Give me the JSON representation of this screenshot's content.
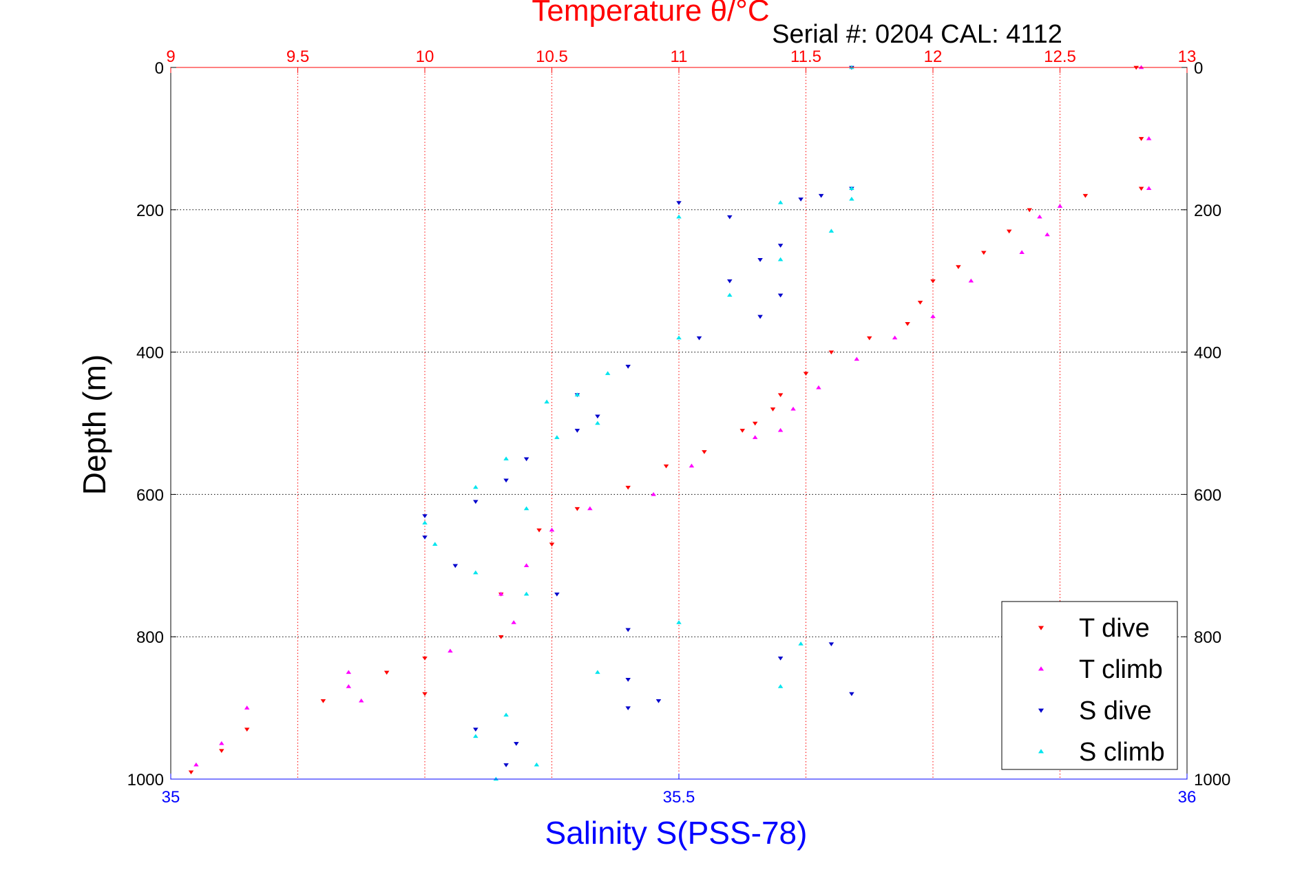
{
  "chart_data": {
    "type": "scatter",
    "title": "Temperature θ/°C",
    "subtitle": "Serial #: 0204  CAL: 4112",
    "xlabel": "Salinity S(PSS-78)",
    "ylabel": "Depth (m)",
    "colors": {
      "temperature_axis": "#ff0000",
      "salinity_axis": "#0000ff",
      "t_dive": "#ff0000",
      "t_climb": "#ff00ff",
      "s_dive": "#0000cc",
      "s_climb": "#00e5ee"
    },
    "top_axis": {
      "label": "Temperature θ/°C",
      "range": [
        9,
        13
      ],
      "ticks": [
        "9",
        "9.5",
        "10",
        "10.5",
        "11",
        "11.5",
        "12",
        "12.5",
        "13"
      ]
    },
    "bottom_axis": {
      "label": "Salinity S(PSS-78)",
      "range": [
        35,
        36
      ],
      "ticks": [
        "35",
        "35.5",
        "36"
      ]
    },
    "y_axis": {
      "label": "Depth (m)",
      "range": [
        0,
        1000
      ],
      "reversed": true,
      "ticks": [
        "0",
        "200",
        "400",
        "600",
        "800",
        "1000"
      ]
    },
    "grid": true,
    "legend": {
      "position": "bottom-right",
      "entries": [
        "T dive",
        "T climb",
        "S dive",
        "S climb"
      ]
    },
    "series": [
      {
        "name": "T dive",
        "axis": "temperature",
        "marker": "triangle-down",
        "points": [
          [
            12.8,
            0
          ],
          [
            12.82,
            100
          ],
          [
            12.82,
            170
          ],
          [
            12.6,
            180
          ],
          [
            12.38,
            200
          ],
          [
            12.3,
            230
          ],
          [
            12.2,
            260
          ],
          [
            12.1,
            280
          ],
          [
            12.0,
            300
          ],
          [
            11.95,
            330
          ],
          [
            11.9,
            360
          ],
          [
            11.75,
            380
          ],
          [
            11.6,
            400
          ],
          [
            11.5,
            430
          ],
          [
            11.4,
            460
          ],
          [
            11.37,
            480
          ],
          [
            11.3,
            500
          ],
          [
            11.25,
            510
          ],
          [
            11.1,
            540
          ],
          [
            10.95,
            560
          ],
          [
            10.8,
            590
          ],
          [
            10.6,
            620
          ],
          [
            10.45,
            650
          ],
          [
            10.5,
            670
          ],
          [
            10.3,
            740
          ],
          [
            10.3,
            800
          ],
          [
            10.0,
            830
          ],
          [
            9.85,
            850
          ],
          [
            10.0,
            880
          ],
          [
            9.6,
            890
          ],
          [
            9.3,
            930
          ],
          [
            9.2,
            960
          ],
          [
            9.08,
            990
          ]
        ]
      },
      {
        "name": "T climb",
        "axis": "temperature",
        "marker": "triangle-up",
        "points": [
          [
            12.82,
            0
          ],
          [
            12.85,
            100
          ],
          [
            12.85,
            170
          ],
          [
            12.5,
            195
          ],
          [
            12.42,
            210
          ],
          [
            12.45,
            235
          ],
          [
            12.35,
            260
          ],
          [
            12.15,
            300
          ],
          [
            12.0,
            350
          ],
          [
            11.85,
            380
          ],
          [
            11.7,
            410
          ],
          [
            11.55,
            450
          ],
          [
            11.45,
            480
          ],
          [
            11.4,
            510
          ],
          [
            11.3,
            520
          ],
          [
            11.05,
            560
          ],
          [
            10.9,
            600
          ],
          [
            10.65,
            620
          ],
          [
            10.5,
            650
          ],
          [
            10.4,
            700
          ],
          [
            10.3,
            740
          ],
          [
            10.35,
            780
          ],
          [
            10.1,
            820
          ],
          [
            9.7,
            850
          ],
          [
            9.7,
            870
          ],
          [
            9.75,
            890
          ],
          [
            9.3,
            900
          ],
          [
            9.2,
            950
          ],
          [
            9.1,
            980
          ]
        ]
      },
      {
        "name": "S dive",
        "axis": "salinity",
        "marker": "triangle-down",
        "points": [
          [
            35.67,
            0
          ],
          [
            35.67,
            170
          ],
          [
            35.64,
            180
          ],
          [
            35.62,
            185
          ],
          [
            35.5,
            190
          ],
          [
            35.55,
            210
          ],
          [
            35.6,
            250
          ],
          [
            35.58,
            270
          ],
          [
            35.55,
            300
          ],
          [
            35.6,
            320
          ],
          [
            35.58,
            350
          ],
          [
            35.52,
            380
          ],
          [
            35.45,
            420
          ],
          [
            35.4,
            460
          ],
          [
            35.42,
            490
          ],
          [
            35.4,
            510
          ],
          [
            35.35,
            550
          ],
          [
            35.33,
            580
          ],
          [
            35.3,
            610
          ],
          [
            35.25,
            630
          ],
          [
            35.25,
            660
          ],
          [
            35.28,
            700
          ],
          [
            35.38,
            740
          ],
          [
            35.45,
            790
          ],
          [
            35.65,
            810
          ],
          [
            35.6,
            830
          ],
          [
            35.45,
            860
          ],
          [
            35.67,
            880
          ],
          [
            35.48,
            890
          ],
          [
            35.45,
            900
          ],
          [
            35.3,
            930
          ],
          [
            35.34,
            950
          ],
          [
            35.33,
            980
          ]
        ]
      },
      {
        "name": "S climb",
        "axis": "salinity",
        "marker": "triangle-up",
        "points": [
          [
            35.67,
            0
          ],
          [
            35.67,
            170
          ],
          [
            35.67,
            185
          ],
          [
            35.6,
            190
          ],
          [
            35.5,
            210
          ],
          [
            35.65,
            230
          ],
          [
            35.6,
            270
          ],
          [
            35.55,
            320
          ],
          [
            35.5,
            380
          ],
          [
            35.43,
            430
          ],
          [
            35.4,
            460
          ],
          [
            35.37,
            470
          ],
          [
            35.42,
            500
          ],
          [
            35.38,
            520
          ],
          [
            35.33,
            550
          ],
          [
            35.3,
            590
          ],
          [
            35.35,
            620
          ],
          [
            35.25,
            640
          ],
          [
            35.26,
            670
          ],
          [
            35.3,
            710
          ],
          [
            35.35,
            740
          ],
          [
            35.5,
            780
          ],
          [
            35.62,
            810
          ],
          [
            35.42,
            850
          ],
          [
            35.6,
            870
          ],
          [
            35.33,
            910
          ],
          [
            35.3,
            940
          ],
          [
            35.36,
            980
          ],
          [
            35.32,
            1000
          ]
        ]
      }
    ]
  }
}
